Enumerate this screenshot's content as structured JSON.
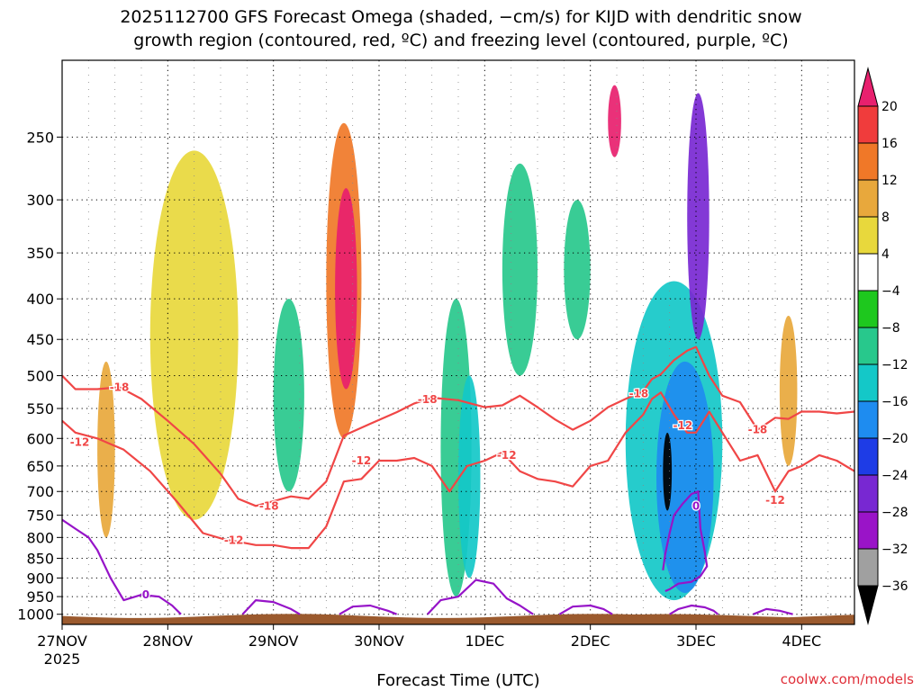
{
  "title": {
    "line1": "2025112700 GFS Forecast Omega (shaded, −cm/s) for KIJD with dendritic snow",
    "line2": "growth region (contoured, red, ºC) and freezing level (contoured, purple, ºC)"
  },
  "xlabel": "Forecast Time (UTC)",
  "credit": "coolwx.com/models",
  "colorbar": {
    "labels": [
      "20",
      "16",
      "12",
      "8",
      "4",
      "−4",
      "−8",
      "−12",
      "−16",
      "−20",
      "−24",
      "−28",
      "−32",
      "−36"
    ],
    "colors": [
      "#e8206e",
      "#f03c3c",
      "#f07828",
      "#e8a83c",
      "#e8d83c",
      "#ffffff",
      "#1ec81e",
      "#28c88c",
      "#14c8c8",
      "#1e8cf0",
      "#1e3ce6",
      "#7828d2",
      "#9a14c8",
      "#a0a0a0",
      "#000000"
    ]
  },
  "colors": {
    "ground": "#9b5a2e",
    "dsgz_contour": "#f04646",
    "freezing_contour": "#9614c8",
    "grid": "#000000"
  },
  "chart_data": {
    "type": "heatmap",
    "title": "2025112700 GFS Forecast Omega (shaded, −cm/s) for KIJD with dendritic snow growth region (contoured, red, ºC) and freezing level (contoured, purple, ºC)",
    "xlabel": "Forecast Time (UTC)",
    "ylabel": "",
    "x_tick_labels": [
      "27NOV",
      "28NOV",
      "29NOV",
      "30NOV",
      "1DEC",
      "2DEC",
      "3DEC",
      "4DEC"
    ],
    "x_tick_sublabel": "2025",
    "x_ticks_hours": [
      0,
      24,
      48,
      72,
      96,
      120,
      144,
      168
    ],
    "xlim_hours": [
      0,
      180
    ],
    "y_tick_labels": [
      "250",
      "300",
      "350",
      "400",
      "450",
      "500",
      "550",
      "600",
      "650",
      "700",
      "750",
      "800",
      "850",
      "900",
      "950",
      "1000"
    ],
    "y_ticks": [
      250,
      300,
      350,
      400,
      450,
      500,
      550,
      600,
      650,
      700,
      750,
      800,
      850,
      900,
      950,
      1000
    ],
    "ylim_hpa": [
      200,
      1030
    ],
    "y_scale": "log",
    "grid": true,
    "colorbar_levels": [
      20,
      16,
      12,
      8,
      4,
      -4,
      -8,
      -12,
      -16,
      -20,
      -24,
      -28,
      -32,
      -36
    ],
    "contour_labels": [
      {
        "label": "-18",
        "color": "red",
        "t": 13,
        "p": 517
      },
      {
        "label": "-12",
        "color": "red",
        "t": 4,
        "p": 607
      },
      {
        "label": "-18",
        "color": "red",
        "t": 47,
        "p": 730
      },
      {
        "label": "-12",
        "color": "red",
        "t": 39,
        "p": 807
      },
      {
        "label": "-18",
        "color": "red",
        "t": 83,
        "p": 536
      },
      {
        "label": "-12",
        "color": "red",
        "t": 68,
        "p": 640
      },
      {
        "label": "-12",
        "color": "red",
        "t": 101,
        "p": 630
      },
      {
        "label": "-18",
        "color": "red",
        "t": 131,
        "p": 527
      },
      {
        "label": "-12",
        "color": "red",
        "t": 141,
        "p": 578
      },
      {
        "label": "-18",
        "color": "red",
        "t": 158,
        "p": 585
      },
      {
        "label": "-12",
        "color": "red",
        "t": 162,
        "p": 718
      },
      {
        "label": "0",
        "color": "purple",
        "t": 19,
        "p": 945
      },
      {
        "label": "0",
        "color": "purple",
        "t": 144,
        "p": 730
      }
    ],
    "series": [
      {
        "name": "-18",
        "x": [
          0,
          3,
          8,
          13,
          18,
          24,
          30,
          36,
          40,
          44,
          48,
          52,
          56,
          60,
          64,
          70,
          76,
          80,
          84,
          90,
          96,
          100,
          104,
          108,
          112,
          116,
          120,
          124,
          128,
          132,
          134,
          136,
          139,
          142,
          144,
          147,
          150,
          154,
          158,
          162,
          165,
          168,
          172,
          176,
          180
        ],
        "y": [
          500,
          520,
          520,
          517,
          535,
          570,
          610,
          665,
          715,
          730,
          720,
          710,
          715,
          680,
          595,
          575,
          556,
          542,
          533,
          537,
          548,
          545,
          530,
          548,
          568,
          585,
          570,
          548,
          535,
          523,
          505,
          498,
          478,
          465,
          460,
          500,
          530,
          540,
          585,
          565,
          567,
          555,
          555,
          558,
          555
        ]
      },
      {
        "name": "-12",
        "x": [
          0,
          3,
          8,
          14,
          20,
          26,
          32,
          37,
          40,
          44,
          48,
          52,
          56,
          60,
          64,
          68,
          72,
          76,
          80,
          84,
          88,
          92,
          96,
          100,
          104,
          108,
          112,
          116,
          120,
          124,
          128,
          132,
          134,
          136,
          139,
          142,
          144,
          147,
          150,
          154,
          158,
          162,
          165,
          168,
          172,
          176,
          180
        ],
        "y": [
          570,
          590,
          600,
          620,
          660,
          720,
          790,
          805,
          810,
          818,
          818,
          825,
          825,
          775,
          680,
          675,
          640,
          640,
          635,
          650,
          700,
          650,
          640,
          625,
          660,
          675,
          680,
          690,
          650,
          640,
          590,
          560,
          535,
          525,
          560,
          590,
          590,
          555,
          590,
          640,
          630,
          700,
          660,
          650,
          630,
          640,
          660
        ]
      },
      {
        "name": "0",
        "x": [
          0,
          3,
          6,
          8,
          11,
          14,
          18,
          22,
          25,
          27
        ],
        "y": [
          760,
          780,
          800,
          830,
          900,
          960,
          945,
          950,
          975,
          1000
        ]
      },
      {
        "name": "0",
        "x": [
          41,
          44,
          48,
          52,
          54
        ],
        "y": [
          1000,
          960,
          965,
          985,
          1000
        ]
      },
      {
        "name": "0",
        "x": [
          63,
          66,
          70,
          74,
          76
        ],
        "y": [
          1000,
          978,
          975,
          990,
          1000
        ]
      },
      {
        "name": "0",
        "x": [
          83,
          86,
          90,
          94,
          98,
          101,
          104,
          107
        ],
        "y": [
          1000,
          960,
          950,
          905,
          915,
          955,
          975,
          1000
        ]
      },
      {
        "name": "0",
        "x": [
          113,
          116,
          120,
          123,
          125
        ],
        "y": [
          1000,
          978,
          975,
          985,
          1000
        ]
      },
      {
        "name": "0",
        "x": [
          136.5,
          137,
          138,
          139,
          141,
          143,
          144.5,
          145,
          146,
          146.5,
          145,
          143,
          140,
          138,
          137
        ],
        "y": [
          880,
          840,
          790,
          750,
          725,
          705,
          700,
          780,
          835,
          870,
          895,
          910,
          915,
          930,
          935
        ]
      },
      {
        "name": "0",
        "x": [
          138,
          140,
          143,
          146,
          148,
          149
        ],
        "y": [
          1000,
          985,
          975,
          980,
          990,
          1000
        ]
      },
      {
        "name": "0",
        "x": [
          157,
          160,
          163,
          166
        ],
        "y": [
          1000,
          985,
          990,
          1000
        ]
      }
    ],
    "shaded_regions": [
      {
        "value": -8,
        "t": [
          86,
          93
        ],
        "p": [
          400,
          950
        ]
      },
      {
        "value": -12,
        "t": [
          90,
          95
        ],
        "p": [
          500,
          900
        ]
      },
      {
        "value": -8,
        "t": [
          48,
          55
        ],
        "p": [
          400,
          700
        ]
      },
      {
        "value": -8,
        "t": [
          100,
          108
        ],
        "p": [
          270,
          500
        ]
      },
      {
        "value": -8,
        "t": [
          114,
          120
        ],
        "p": [
          300,
          450
        ]
      },
      {
        "value": -12,
        "t": [
          128,
          150
        ],
        "p": [
          380,
          960
        ]
      },
      {
        "value": -16,
        "t": [
          135,
          148
        ],
        "p": [
          480,
          940
        ]
      },
      {
        "value": -24,
        "t": [
          142,
          147
        ],
        "p": [
          220,
          450
        ]
      },
      {
        "value": -36,
        "t": [
          136.5,
          138.5
        ],
        "p": [
          590,
          740
        ]
      },
      {
        "value": 20,
        "t": [
          62,
          67
        ],
        "p": [
          290,
          520
        ]
      },
      {
        "value": 12,
        "t": [
          60,
          68
        ],
        "p": [
          240,
          600
        ]
      },
      {
        "value": 8,
        "t": [
          8,
          12
        ],
        "p": [
          480,
          800
        ]
      },
      {
        "value": 8,
        "t": [
          163,
          167
        ],
        "p": [
          420,
          650
        ]
      },
      {
        "value": 20,
        "t": [
          124,
          127
        ],
        "p": [
          215,
          265
        ]
      },
      {
        "value": 4,
        "t": [
          20,
          40
        ],
        "p": [
          260,
          760
        ]
      }
    ]
  }
}
